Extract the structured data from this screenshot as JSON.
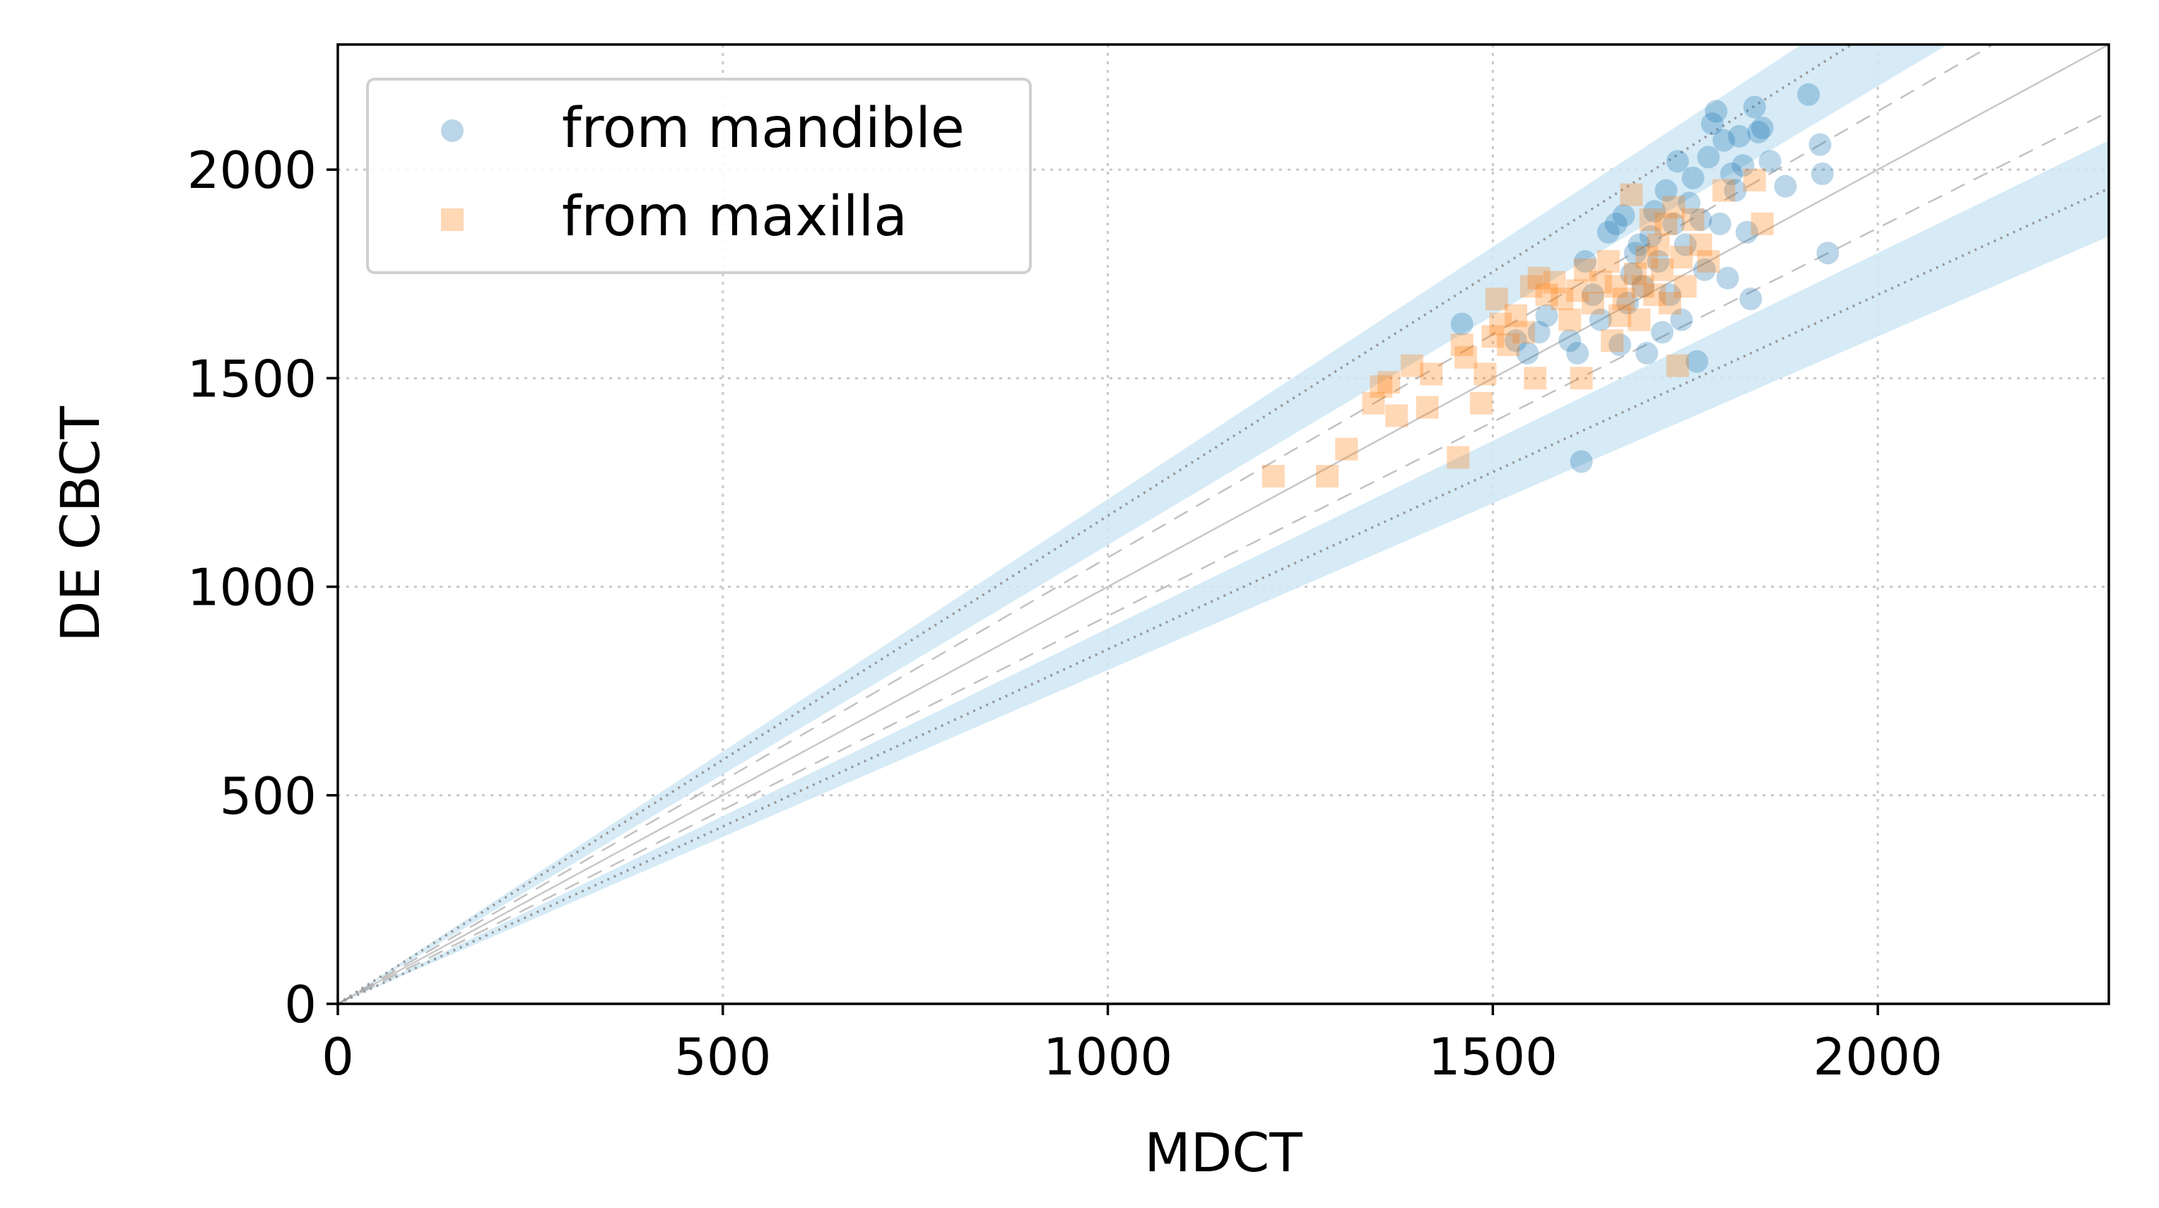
{
  "chart_data": {
    "type": "scatter",
    "title": "",
    "xlabel": "MDCT",
    "ylabel": "DE CBCT",
    "xlim": [
      0,
      2300
    ],
    "ylim": [
      0,
      2300
    ],
    "xticks": [
      0,
      500,
      1000,
      1500,
      2000
    ],
    "yticks": [
      0,
      500,
      1000,
      1500,
      2000
    ],
    "xtick_labels": [
      "0",
      "500",
      "1000",
      "1500",
      "2000"
    ],
    "ytick_labels": [
      "0",
      "500",
      "1000",
      "1500",
      "2000"
    ],
    "grid": true,
    "legend_position": "top-left",
    "colors": {
      "mandible": "#1f77b4",
      "maxilla": "#ff7f0e",
      "band": "#cfe8f4",
      "guide": "#999999",
      "identity": "#c8c8c8",
      "grid": "#c8c8c8"
    },
    "reference_lines": {
      "identity_slope": 1.0,
      "dashed_slopes": [
        1.07,
        0.93
      ],
      "dotted_slopes": [
        1.17,
        0.85
      ],
      "shaded_bands": [
        {
          "slope_low": 1.1,
          "slope_high": 1.21
        },
        {
          "slope_low": 0.8,
          "slope_high": 0.9
        }
      ]
    },
    "series": [
      {
        "name": "from mandible",
        "marker": "circle",
        "color": "#1f77b4",
        "points": [
          [
            1460,
            1630
          ],
          [
            1530,
            1590
          ],
          [
            1545,
            1560
          ],
          [
            1560,
            1610
          ],
          [
            1570,
            1650
          ],
          [
            1600,
            1590
          ],
          [
            1610,
            1560
          ],
          [
            1615,
            1300
          ],
          [
            1620,
            1780
          ],
          [
            1630,
            1700
          ],
          [
            1640,
            1640
          ],
          [
            1650,
            1850
          ],
          [
            1660,
            1870
          ],
          [
            1665,
            1580
          ],
          [
            1670,
            1890
          ],
          [
            1675,
            1680
          ],
          [
            1680,
            1750
          ],
          [
            1685,
            1800
          ],
          [
            1690,
            1820
          ],
          [
            1695,
            1720
          ],
          [
            1700,
            1560
          ],
          [
            1705,
            1840
          ],
          [
            1710,
            1900
          ],
          [
            1715,
            1780
          ],
          [
            1720,
            1610
          ],
          [
            1725,
            1950
          ],
          [
            1730,
            1700
          ],
          [
            1735,
            1870
          ],
          [
            1740,
            2020
          ],
          [
            1745,
            1640
          ],
          [
            1750,
            1820
          ],
          [
            1755,
            1920
          ],
          [
            1760,
            1980
          ],
          [
            1765,
            1540
          ],
          [
            1770,
            1880
          ],
          [
            1775,
            1760
          ],
          [
            1780,
            2030
          ],
          [
            1785,
            2110
          ],
          [
            1790,
            2140
          ],
          [
            1795,
            1870
          ],
          [
            1800,
            2070
          ],
          [
            1805,
            1740
          ],
          [
            1810,
            1990
          ],
          [
            1815,
            1950
          ],
          [
            1820,
            2080
          ],
          [
            1825,
            2010
          ],
          [
            1830,
            1850
          ],
          [
            1835,
            1690
          ],
          [
            1840,
            2150
          ],
          [
            1845,
            2090
          ],
          [
            1850,
            2100
          ],
          [
            1860,
            2020
          ],
          [
            1880,
            1960
          ],
          [
            1910,
            2180
          ],
          [
            1925,
            2060
          ],
          [
            1928,
            1990
          ],
          [
            1935,
            1800
          ]
        ]
      },
      {
        "name": "from maxilla",
        "marker": "square",
        "color": "#ff7f0e",
        "points": [
          [
            1215,
            1265
          ],
          [
            1285,
            1265
          ],
          [
            1310,
            1330
          ],
          [
            1345,
            1440
          ],
          [
            1355,
            1480
          ],
          [
            1365,
            1490
          ],
          [
            1375,
            1410
          ],
          [
            1395,
            1530
          ],
          [
            1415,
            1430
          ],
          [
            1420,
            1510
          ],
          [
            1455,
            1310
          ],
          [
            1460,
            1580
          ],
          [
            1465,
            1550
          ],
          [
            1485,
            1440
          ],
          [
            1490,
            1510
          ],
          [
            1500,
            1600
          ],
          [
            1505,
            1690
          ],
          [
            1510,
            1630
          ],
          [
            1520,
            1580
          ],
          [
            1530,
            1650
          ],
          [
            1540,
            1610
          ],
          [
            1550,
            1720
          ],
          [
            1555,
            1500
          ],
          [
            1560,
            1740
          ],
          [
            1570,
            1700
          ],
          [
            1580,
            1730
          ],
          [
            1590,
            1690
          ],
          [
            1600,
            1640
          ],
          [
            1610,
            1710
          ],
          [
            1615,
            1500
          ],
          [
            1620,
            1760
          ],
          [
            1630,
            1680
          ],
          [
            1640,
            1730
          ],
          [
            1650,
            1780
          ],
          [
            1655,
            1590
          ],
          [
            1660,
            1720
          ],
          [
            1665,
            1650
          ],
          [
            1670,
            1690
          ],
          [
            1680,
            1940
          ],
          [
            1685,
            1750
          ],
          [
            1690,
            1640
          ],
          [
            1695,
            1720
          ],
          [
            1700,
            1790
          ],
          [
            1705,
            1880
          ],
          [
            1710,
            1700
          ],
          [
            1715,
            1820
          ],
          [
            1720,
            1760
          ],
          [
            1725,
            1870
          ],
          [
            1730,
            1680
          ],
          [
            1735,
            1910
          ],
          [
            1740,
            1530
          ],
          [
            1745,
            1790
          ],
          [
            1750,
            1720
          ],
          [
            1760,
            1880
          ],
          [
            1770,
            1820
          ],
          [
            1780,
            1780
          ],
          [
            1800,
            1950
          ],
          [
            1840,
            1975
          ],
          [
            1850,
            1870
          ]
        ]
      }
    ]
  }
}
